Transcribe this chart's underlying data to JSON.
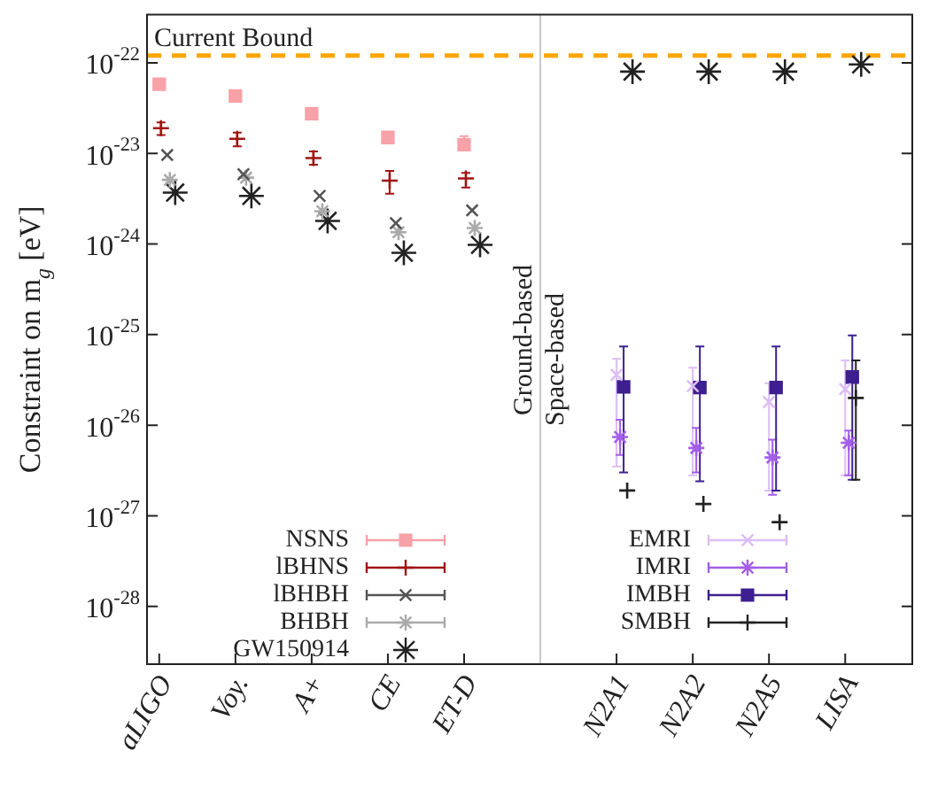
{
  "chart_data": {
    "type": "scatter",
    "ylabel": "Constraint on m$_{g}$ [eV]",
    "log": "y",
    "legend": "bottom",
    "categories": [
      "aLIGO",
      "Voy.",
      "A+",
      "CE",
      "ET-D",
      null,
      "N2A1",
      "N2A2",
      "N2A5",
      "LISA"
    ],
    "ylim": [
      2.3e-29,
      3.4e-22
    ],
    "yticks": [
      {
        "value": 1e-28,
        "label": "10$^{-28}$"
      },
      {
        "value": 1e-27,
        "label": "10$^{-27}$"
      },
      {
        "value": 1e-26,
        "label": "10$^{-26}$"
      },
      {
        "value": 1e-25,
        "label": "10$^{-25}$"
      },
      {
        "value": 1e-24,
        "label": "10$^{-24}$"
      },
      {
        "value": 1e-23,
        "label": "10$^{-23}$"
      },
      {
        "value": 1e-22,
        "label": "10$^{-22}$"
      }
    ],
    "ref_lines": [
      {
        "axis": "y",
        "value": 1.2e-22,
        "label": "Current Bound",
        "color": "#ffa500",
        "line_style": "dashed"
      },
      {
        "axis": "x",
        "color": "#c8c8c8"
      }
    ],
    "annotations": [
      "Ground-based",
      "Space-based"
    ],
    "series": [
      {
        "name": "NSNS",
        "color": "#f7a1a8",
        "marker": "square",
        "values": [
          5.8e-23,
          4.3e-23,
          2.75e-23,
          1.5e-23,
          1.25e-23,
          null,
          null,
          null,
          null,
          null
        ],
        "errors": [
          null,
          null,
          null,
          null,
          [
            1.08e-23,
            1.55e-23
          ],
          null,
          null,
          null,
          null,
          null
        ]
      },
      {
        "name": "lBHNS",
        "color": "#a01414",
        "marker": "cross",
        "values": [
          1.9e-23,
          1.45e-23,
          8.9e-24,
          5e-24,
          5.3e-24,
          null,
          null,
          null,
          null,
          null
        ],
        "errors": [
          [
            1.6e-23,
            2.2e-23
          ],
          [
            1.2e-23,
            1.7e-23
          ],
          [
            7.5e-24,
            1.05e-23
          ],
          [
            3.6e-24,
            6.4e-24
          ],
          [
            4.2e-24,
            6.1e-24
          ],
          null,
          null,
          null,
          null,
          null
        ]
      },
      {
        "name": "lBHBH",
        "color": "#555555",
        "marker": "x",
        "values": [
          9.6e-24,
          5.9e-24,
          3.4e-24,
          1.7e-24,
          2.35e-24,
          null,
          null,
          null,
          null,
          null
        ]
      },
      {
        "name": "BHBH",
        "color": "#aaaaaa",
        "values": [
          5.1e-24,
          5.4e-24,
          2.3e-24,
          1.35e-24,
          1.5e-24,
          null,
          null,
          null,
          null,
          null
        ]
      },
      {
        "name": "GW150914",
        "color": "#222222",
        "values": [
          3.7e-24,
          3.4e-24,
          1.8e-24,
          8e-25,
          9.8e-25,
          null,
          8e-23,
          8e-23,
          8e-23,
          9.6e-23
        ]
      },
      {
        "name": "EMRI",
        "color": "#dcbdf5",
        "marker": "x",
        "values": [
          null,
          null,
          null,
          null,
          null,
          null,
          3.6e-26,
          2.7e-26,
          1.8e-26,
          2.5e-26
        ],
        "errors": [
          null,
          null,
          null,
          null,
          null,
          null,
          [
            3.5e-27,
            5.4e-26
          ],
          [
            2.8e-27,
            4.3e-26
          ],
          [
            1.9e-27,
            2.9e-26
          ],
          [
            2.8e-27,
            5.2e-26
          ]
        ]
      },
      {
        "name": "IMRI",
        "color": "#a45ee8",
        "values": [
          null,
          null,
          null,
          null,
          null,
          null,
          7.4e-27,
          5.6e-27,
          4.4e-27,
          6.4e-27
        ],
        "errors": [
          null,
          null,
          null,
          null,
          null,
          null,
          [
            4.7e-27,
            1.15e-26
          ],
          [
            3e-27,
            9.3e-27
          ],
          [
            1.7e-27,
            6.9e-27
          ],
          [
            2.8e-27,
            8.7e-27
          ]
        ]
      },
      {
        "name": "IMBH",
        "color": "#3d1f8f",
        "marker": "square",
        "values": [
          null,
          null,
          null,
          null,
          null,
          null,
          2.65e-26,
          2.6e-26,
          2.6e-26,
          3.4e-26
        ],
        "errors": [
          null,
          null,
          null,
          null,
          null,
          null,
          [
            3e-27,
            7.4e-26
          ],
          [
            2.4e-27,
            7.4e-26
          ],
          [
            1.9e-27,
            7.4e-26
          ],
          [
            2.5e-27,
            9.8e-26
          ]
        ]
      },
      {
        "name": "SMBH",
        "color": "#222222",
        "marker": "cross",
        "values": [
          null,
          null,
          null,
          null,
          null,
          null,
          1.9e-27,
          1.35e-27,
          8.5e-28,
          2e-26
        ],
        "errors": [
          null,
          null,
          null,
          null,
          null,
          null,
          null,
          null,
          null,
          [
            2.5e-27,
            5.2e-26
          ]
        ]
      }
    ]
  }
}
